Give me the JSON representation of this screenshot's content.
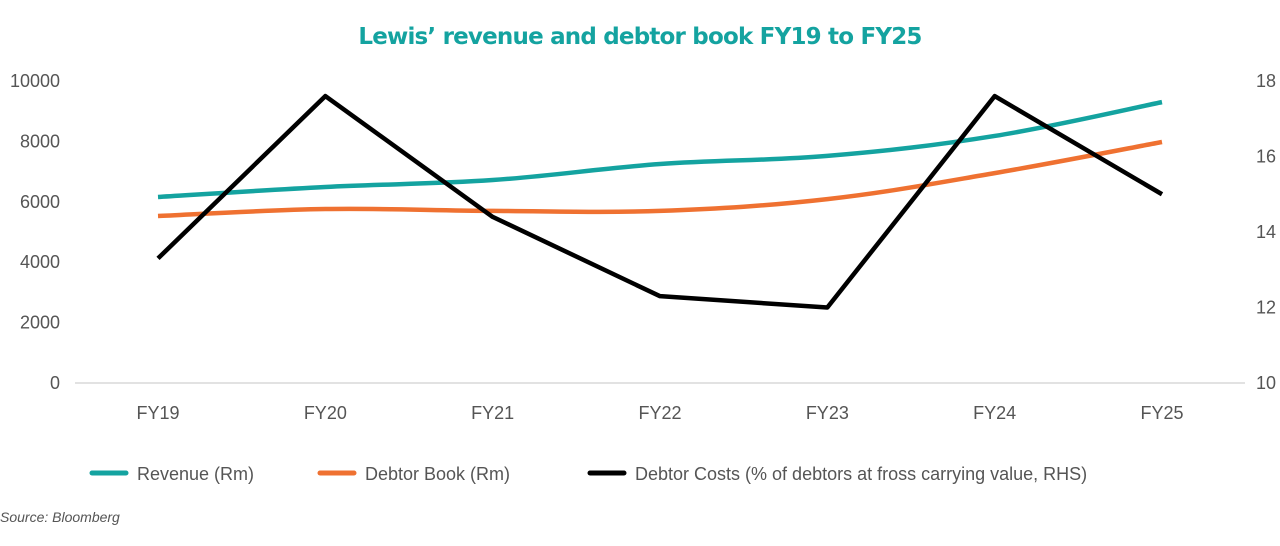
{
  "chart_data": {
    "type": "line",
    "title": "Lewis’ revenue and debtor book FY19 to FY25",
    "categories": [
      "FY19",
      "FY20",
      "FY21",
      "FY22",
      "FY23",
      "FY24",
      "FY25"
    ],
    "y_left": {
      "ylim": [
        0,
        10000
      ],
      "ticks": [
        "0",
        "2000",
        "4000",
        "6000",
        "8000",
        "10000"
      ]
    },
    "y_right": {
      "ylim": [
        10,
        18
      ],
      "ticks": [
        "10",
        "12",
        "14",
        "16",
        "18"
      ]
    },
    "grid": false,
    "legend_position": "bottom",
    "series": [
      {
        "name": "Revenue (Rm)",
        "axis": "left",
        "color": "#14a3a0",
        "values": [
          6160,
          6490,
          6720,
          7250,
          7520,
          8180,
          9300
        ]
      },
      {
        "name": "Debtor Book (Rm)",
        "axis": "left",
        "color": "#ef7131",
        "values": [
          5530,
          5760,
          5700,
          5700,
          6090,
          6950,
          7980
        ]
      },
      {
        "name": "Debtor Costs (% of debtors at fross carrying value, RHS)",
        "axis": "right",
        "color": "#000000",
        "values": [
          13.3,
          17.6,
          14.4,
          12.3,
          12.0,
          17.6,
          15.0
        ]
      }
    ],
    "source": "Source: Bloomberg"
  }
}
